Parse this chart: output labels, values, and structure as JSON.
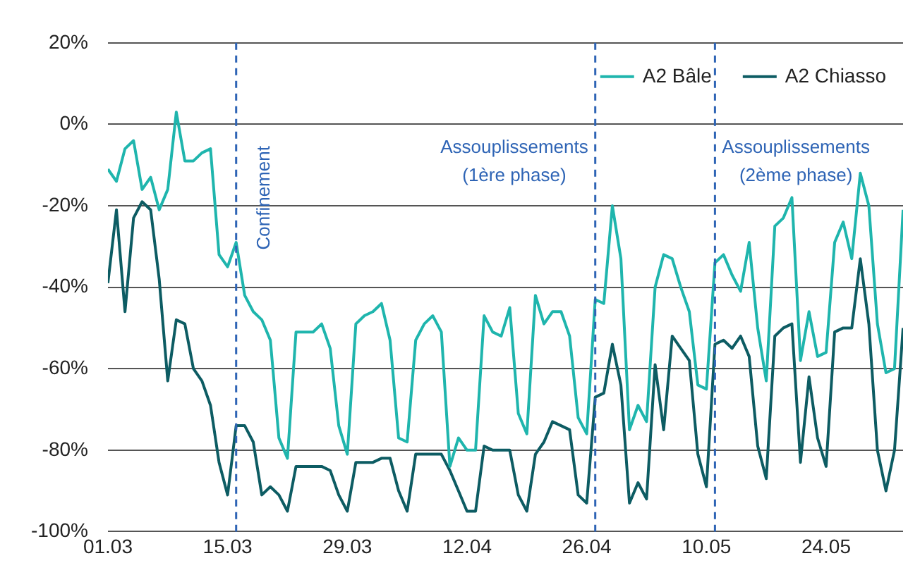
{
  "chart_data": {
    "type": "line",
    "x": [
      "--03-01",
      "--03-02",
      "--03-03",
      "--03-04",
      "--03-05",
      "--03-06",
      "--03-07",
      "--03-08",
      "--03-09",
      "--03-10",
      "--03-11",
      "--03-12",
      "--03-13",
      "--03-14",
      "--03-15",
      "--03-16",
      "--03-17",
      "--03-18",
      "--03-19",
      "--03-20",
      "--03-21",
      "--03-22",
      "--03-23",
      "--03-24",
      "--03-25",
      "--03-26",
      "--03-27",
      "--03-28",
      "--03-29",
      "--03-30",
      "--03-31",
      "--04-01",
      "--04-02",
      "--04-03",
      "--04-04",
      "--04-05",
      "--04-06",
      "--04-07",
      "--04-08",
      "--04-09",
      "--04-10",
      "--04-11",
      "--04-12",
      "--04-13",
      "--04-14",
      "--04-15",
      "--04-16",
      "--04-17",
      "--04-18",
      "--04-19",
      "--04-20",
      "--04-21",
      "--04-22",
      "--04-23",
      "--04-24",
      "--04-25",
      "--04-26",
      "--04-27",
      "--04-28",
      "--04-29",
      "--04-30",
      "--05-01",
      "--05-02",
      "--05-03",
      "--05-04",
      "--05-05",
      "--05-06",
      "--05-07",
      "--05-08",
      "--05-09",
      "--05-10",
      "--05-11",
      "--05-12",
      "--05-13",
      "--05-14",
      "--05-15",
      "--05-16",
      "--05-17",
      "--05-18",
      "--05-19",
      "--05-20",
      "--05-21",
      "--05-22",
      "--05-23",
      "--05-24",
      "--05-25",
      "--05-26",
      "--05-27",
      "--05-28",
      "--05-29",
      "--05-30",
      "--05-31",
      "--06-01",
      "--06-02"
    ],
    "series": [
      {
        "name": "A2 Bâle",
        "color": "#1fb5ad",
        "values": [
          -11,
          -14,
          -6,
          -4,
          -16,
          -13,
          -21,
          -16,
          3,
          -9,
          -9,
          -7,
          -6,
          -32,
          -35,
          -29,
          -42,
          -46,
          -48,
          -53,
          -77,
          -82,
          -51,
          -51,
          -51,
          -49,
          -55,
          -74,
          -81,
          -49,
          -47,
          -46,
          -44,
          -53,
          -77,
          -78,
          -53,
          -49,
          -47,
          -51,
          -84,
          -77,
          -80,
          -80,
          -47,
          -51,
          -52,
          -45,
          -71,
          -76,
          -42,
          -49,
          -46,
          -46,
          -52,
          -72,
          -76,
          -43,
          -44,
          -20,
          -33,
          -75,
          -69,
          -73,
          -40,
          -32,
          -33,
          -40,
          -46,
          -64,
          -65,
          -34,
          -32,
          -37,
          -41,
          -29,
          -50,
          -63,
          -25,
          -23,
          -18,
          -58,
          -46,
          -57,
          -56,
          -29,
          -24,
          -33,
          -12,
          -20,
          -49,
          -61,
          -60,
          -21
        ]
      },
      {
        "name": "A2 Chiasso",
        "color": "#0d5c63",
        "values": [
          -39,
          -21,
          -46,
          -23,
          -19,
          -21,
          -38,
          -63,
          -48,
          -49,
          -60,
          -63,
          -69,
          -83,
          -91,
          -74,
          -74,
          -78,
          -91,
          -89,
          -91,
          -95,
          -84,
          -84,
          -84,
          -84,
          -85,
          -91,
          -95,
          -83,
          -83,
          -83,
          -82,
          -82,
          -90,
          -95,
          -81,
          -81,
          -81,
          -81,
          -85,
          -90,
          -95,
          -95,
          -79,
          -80,
          -80,
          -80,
          -91,
          -95,
          -81,
          -78,
          -73,
          -74,
          -75,
          -91,
          -93,
          -67,
          -66,
          -54,
          -64,
          -93,
          -88,
          -92,
          -59,
          -75,
          -52,
          -55,
          -58,
          -81,
          -89,
          -54,
          -53,
          -55,
          -52,
          -57,
          -79,
          -87,
          -52,
          -50,
          -49,
          -83,
          -62,
          -77,
          -84,
          -51,
          -50,
          -50,
          -33,
          -49,
          -80,
          -90,
          -80,
          -50
        ]
      }
    ],
    "xlim": [
      "--03-01",
      "--06-02"
    ],
    "xticks": [
      {
        "value": "--03-01",
        "label": "01.03"
      },
      {
        "value": "--03-15",
        "label": "15.03"
      },
      {
        "value": "--03-29",
        "label": "29.03"
      },
      {
        "value": "--04-12",
        "label": "12.04"
      },
      {
        "value": "--04-26",
        "label": "26.04"
      },
      {
        "value": "--05-10",
        "label": "10.05"
      },
      {
        "value": "--05-24",
        "label": "24.05"
      }
    ],
    "ylim": [
      -100,
      20
    ],
    "yticks": [
      {
        "value": -100,
        "label": "-100%"
      },
      {
        "value": -80,
        "label": "-80%"
      },
      {
        "value": -60,
        "label": "-60%"
      },
      {
        "value": -40,
        "label": "-40%"
      },
      {
        "value": -20,
        "label": "-20%"
      },
      {
        "value": 0,
        "label": "0%"
      },
      {
        "value": 20,
        "label": "20%"
      }
    ],
    "grid": "y",
    "legend": "top right",
    "ref_lines": [
      {
        "axis": "x",
        "value": "--03-16",
        "label": "Confinement",
        "color": "#2e64b5",
        "line_style": "dashed"
      },
      {
        "axis": "x",
        "value": "--04-27",
        "label": "Assouplissements\n(1ère phase)",
        "color": "#2e64b5",
        "line_style": "dashed"
      },
      {
        "axis": "x",
        "value": "--05-11",
        "label": "Assouplissements\n(2ème phase)",
        "color": "#2e64b5",
        "line_style": "dashed"
      }
    ]
  }
}
